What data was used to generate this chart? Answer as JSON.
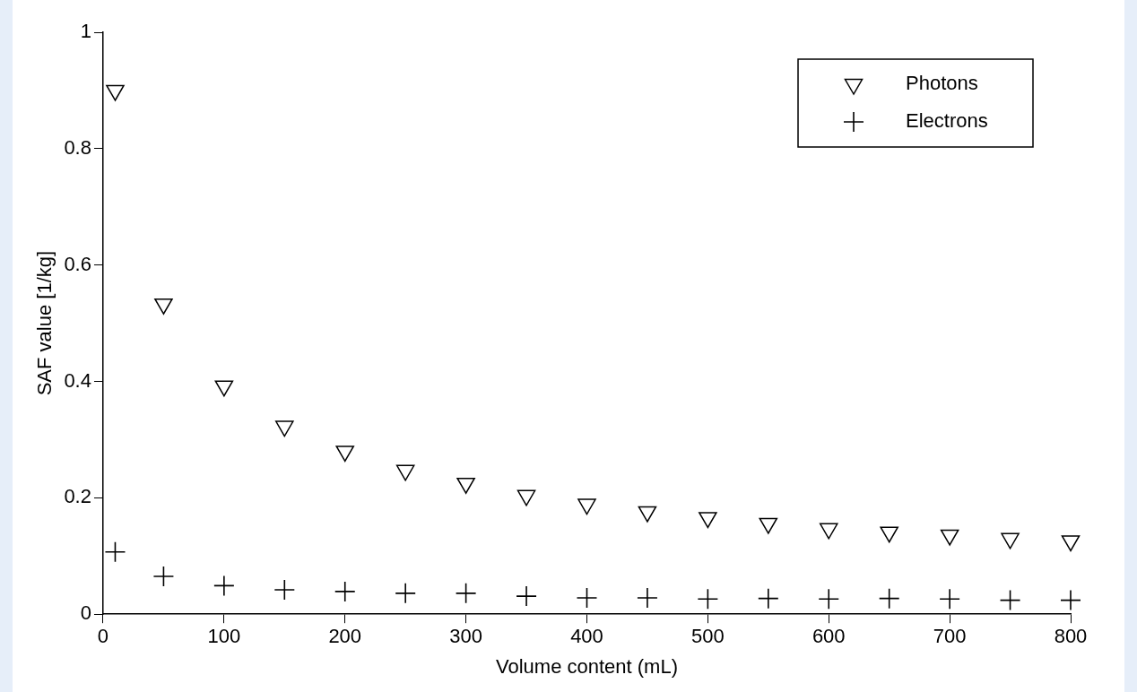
{
  "chart_data": {
    "type": "scatter",
    "xlabel": "Volume content (mL)",
    "ylabel": "SAF value [1/kg]",
    "x": [
      10,
      50,
      100,
      150,
      200,
      250,
      300,
      350,
      400,
      450,
      500,
      550,
      600,
      650,
      700,
      750,
      800
    ],
    "series": [
      {
        "name": "Photons",
        "color": "#000000",
        "marker": "triangle",
        "values": [
          0.9,
          0.533,
          0.392,
          0.323,
          0.28,
          0.247,
          0.225,
          0.204,
          0.189,
          0.176,
          0.166,
          0.156,
          0.147,
          0.141,
          0.136,
          0.13,
          0.126
        ]
      },
      {
        "name": "Electrons",
        "color": "#000000",
        "marker": "cross",
        "values": [
          0.107,
          0.065,
          0.049,
          0.042,
          0.039,
          0.036,
          0.036,
          0.031,
          0.028,
          0.028,
          0.026,
          0.027,
          0.026,
          0.027,
          0.026,
          0.024,
          0.024
        ]
      }
    ],
    "xlim": [
      0,
      800
    ],
    "xticks": [
      0,
      100,
      200,
      300,
      400,
      500,
      600,
      700,
      800
    ],
    "ylim": [
      0,
      1
    ],
    "yticks": [
      0,
      0.2,
      0.4,
      0.6,
      0.8,
      1
    ],
    "grid": false,
    "legend": "top right"
  }
}
